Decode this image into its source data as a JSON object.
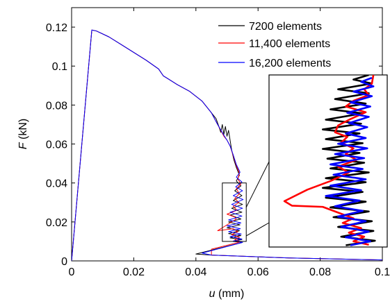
{
  "chart_data": {
    "type": "line",
    "xlabel": {
      "symbol": "u",
      "unit": "(mm)"
    },
    "ylabel": {
      "symbol": "F",
      "unit": "(kN)"
    },
    "xlim": [
      0,
      0.1
    ],
    "ylim": [
      0,
      0.13
    ],
    "x_ticks": [
      {
        "value": 0,
        "label": "0"
      },
      {
        "value": 0.02,
        "label": "0.02"
      },
      {
        "value": 0.04,
        "label": "0.04"
      },
      {
        "value": 0.06,
        "label": "0.06"
      },
      {
        "value": 0.08,
        "label": "0.08"
      },
      {
        "value": 0.1,
        "label": "0.1"
      }
    ],
    "y_ticks": [
      {
        "value": 0,
        "label": "0"
      },
      {
        "value": 0.02,
        "label": "0.02"
      },
      {
        "value": 0.04,
        "label": "0.04"
      },
      {
        "value": 0.06,
        "label": "0.06"
      },
      {
        "value": 0.08,
        "label": "0.08"
      },
      {
        "value": 0.1,
        "label": "0.1"
      },
      {
        "value": 0.12,
        "label": "0.12"
      }
    ],
    "grid": false,
    "legend_position": "top-right",
    "series": [
      {
        "name": "7200 elements",
        "color": "#000000",
        "points": [
          [
            0,
            0
          ],
          [
            0.0065,
            0.1185
          ],
          [
            0.008,
            0.118
          ],
          [
            0.012,
            0.115
          ],
          [
            0.016,
            0.111
          ],
          [
            0.02,
            0.107
          ],
          [
            0.024,
            0.103
          ],
          [
            0.028,
            0.0985
          ],
          [
            0.0295,
            0.095
          ],
          [
            0.031,
            0.0935
          ],
          [
            0.034,
            0.0905
          ],
          [
            0.038,
            0.087
          ],
          [
            0.042,
            0.082
          ],
          [
            0.045,
            0.076
          ],
          [
            0.0465,
            0.073
          ],
          [
            0.0475,
            0.0685
          ],
          [
            0.048,
            0.066
          ],
          [
            0.0485,
            0.07
          ],
          [
            0.049,
            0.065
          ],
          [
            0.0495,
            0.069
          ],
          [
            0.05,
            0.064
          ],
          [
            0.0505,
            0.067
          ],
          [
            0.051,
            0.062
          ],
          [
            0.0515,
            0.057
          ],
          [
            0.0522,
            0.052
          ],
          [
            0.053,
            0.048
          ],
          [
            0.054,
            0.044
          ],
          [
            0.053,
            0.041
          ],
          [
            0.0545,
            0.0385
          ],
          [
            0.0525,
            0.036
          ],
          [
            0.0548,
            0.0335
          ],
          [
            0.052,
            0.031
          ],
          [
            0.055,
            0.029
          ],
          [
            0.0515,
            0.027
          ],
          [
            0.0548,
            0.025
          ],
          [
            0.051,
            0.0235
          ],
          [
            0.0545,
            0.0215
          ],
          [
            0.0505,
            0.02
          ],
          [
            0.0542,
            0.0185
          ],
          [
            0.05,
            0.017
          ],
          [
            0.054,
            0.0155
          ],
          [
            0.0505,
            0.014
          ],
          [
            0.0545,
            0.013
          ],
          [
            0.051,
            0.0118
          ],
          [
            0.0548,
            0.011
          ],
          [
            0.052,
            0.01
          ],
          [
            0.055,
            0.0095
          ],
          [
            0.04,
            0.0035
          ],
          [
            0.045,
            0.003
          ],
          [
            0.07,
            0.0015
          ],
          [
            0.1,
            0.0005
          ]
        ]
      },
      {
        "name": "11,400 elements",
        "color": "#ff0000",
        "points": [
          [
            0,
            0
          ],
          [
            0.0065,
            0.1185
          ],
          [
            0.008,
            0.118
          ],
          [
            0.012,
            0.115
          ],
          [
            0.016,
            0.111
          ],
          [
            0.02,
            0.107
          ],
          [
            0.024,
            0.103
          ],
          [
            0.028,
            0.0985
          ],
          [
            0.0295,
            0.095
          ],
          [
            0.031,
            0.0935
          ],
          [
            0.034,
            0.0905
          ],
          [
            0.038,
            0.087
          ],
          [
            0.042,
            0.082
          ],
          [
            0.045,
            0.076
          ],
          [
            0.047,
            0.07
          ],
          [
            0.049,
            0.064
          ],
          [
            0.05,
            0.062
          ],
          [
            0.051,
            0.059
          ],
          [
            0.052,
            0.054
          ],
          [
            0.053,
            0.049
          ],
          [
            0.054,
            0.045
          ],
          [
            0.0535,
            0.042
          ],
          [
            0.0545,
            0.0395
          ],
          [
            0.053,
            0.037
          ],
          [
            0.054,
            0.0345
          ],
          [
            0.0525,
            0.032
          ],
          [
            0.0538,
            0.03
          ],
          [
            0.052,
            0.028
          ],
          [
            0.0532,
            0.026
          ],
          [
            0.05,
            0.024
          ],
          [
            0.0525,
            0.0225
          ],
          [
            0.053,
            0.0215
          ],
          [
            0.049,
            0.0175
          ],
          [
            0.047,
            0.0155
          ],
          [
            0.052,
            0.0165
          ],
          [
            0.0535,
            0.015
          ],
          [
            0.0515,
            0.0135
          ],
          [
            0.054,
            0.012
          ],
          [
            0.0525,
            0.0108
          ],
          [
            0.0545,
            0.0098
          ],
          [
            0.045,
            0.006
          ],
          [
            0.045,
            0.003
          ],
          [
            0.07,
            0.0015
          ],
          [
            0.1,
            0.0005
          ]
        ]
      },
      {
        "name": "16,200 elements",
        "color": "#0000ff",
        "points": [
          [
            0,
            0
          ],
          [
            0.0065,
            0.1185
          ],
          [
            0.008,
            0.118
          ],
          [
            0.012,
            0.115
          ],
          [
            0.016,
            0.111
          ],
          [
            0.02,
            0.107
          ],
          [
            0.024,
            0.103
          ],
          [
            0.028,
            0.0985
          ],
          [
            0.0295,
            0.095
          ],
          [
            0.031,
            0.0935
          ],
          [
            0.034,
            0.0905
          ],
          [
            0.038,
            0.087
          ],
          [
            0.042,
            0.082
          ],
          [
            0.045,
            0.076
          ],
          [
            0.047,
            0.07
          ],
          [
            0.049,
            0.0645
          ],
          [
            0.05,
            0.062
          ],
          [
            0.051,
            0.059
          ],
          [
            0.052,
            0.0545
          ],
          [
            0.053,
            0.0495
          ],
          [
            0.0542,
            0.0455
          ],
          [
            0.053,
            0.043
          ],
          [
            0.0548,
            0.0405
          ],
          [
            0.0528,
            0.038
          ],
          [
            0.055,
            0.036
          ],
          [
            0.052,
            0.0335
          ],
          [
            0.0552,
            0.0315
          ],
          [
            0.0515,
            0.029
          ],
          [
            0.055,
            0.027
          ],
          [
            0.051,
            0.025
          ],
          [
            0.0548,
            0.023
          ],
          [
            0.0505,
            0.021
          ],
          [
            0.0545,
            0.0195
          ],
          [
            0.05,
            0.018
          ],
          [
            0.0543,
            0.0165
          ],
          [
            0.0505,
            0.015
          ],
          [
            0.0546,
            0.0138
          ],
          [
            0.051,
            0.0125
          ],
          [
            0.0548,
            0.0112
          ],
          [
            0.052,
            0.0102
          ],
          [
            0.055,
            0.0095
          ],
          [
            0.042,
            0.004
          ],
          [
            0.045,
            0.003
          ],
          [
            0.07,
            0.0015
          ],
          [
            0.1,
            0.0005
          ]
        ]
      }
    ],
    "inset": {
      "source_xlim": [
        0.0485,
        0.0562
      ],
      "source_ylim": [
        0.01,
        0.04
      ],
      "series": [
        {
          "color": "#000000",
          "points": [
            [
              0.055,
              0.04
            ],
            [
              0.054,
              0.0392
            ],
            [
              0.0552,
              0.0385
            ],
            [
              0.053,
              0.0375
            ],
            [
              0.055,
              0.0368
            ],
            [
              0.0528,
              0.0358
            ],
            [
              0.0548,
              0.035
            ],
            [
              0.0525,
              0.034
            ],
            [
              0.0546,
              0.0333
            ],
            [
              0.0522,
              0.0322
            ],
            [
              0.0545,
              0.0315
            ],
            [
              0.052,
              0.0305
            ],
            [
              0.0544,
              0.0298
            ],
            [
              0.0522,
              0.0288
            ],
            [
              0.0546,
              0.0281
            ],
            [
              0.052,
              0.0271
            ],
            [
              0.0544,
              0.0264
            ],
            [
              0.0523,
              0.0254
            ],
            [
              0.0547,
              0.0247
            ],
            [
              0.0525,
              0.0237
            ],
            [
              0.055,
              0.023
            ],
            [
              0.0522,
              0.022
            ],
            [
              0.0548,
              0.0213
            ],
            [
              0.052,
              0.0203
            ],
            [
              0.0546,
              0.0196
            ],
            [
              0.0522,
              0.0186
            ],
            [
              0.0548,
              0.0179
            ],
            [
              0.0525,
              0.0169
            ],
            [
              0.055,
              0.0162
            ],
            [
              0.0527,
              0.0152
            ],
            [
              0.0552,
              0.0145
            ],
            [
              0.053,
              0.0135
            ],
            [
              0.0553,
              0.0128
            ],
            [
              0.0532,
              0.0118
            ],
            [
              0.0554,
              0.0111
            ],
            [
              0.0535,
              0.0103
            ]
          ]
        },
        {
          "color": "#ff0000",
          "points": [
            [
              0.0553,
              0.04
            ],
            [
              0.0552,
              0.0385
            ],
            [
              0.0547,
              0.0375
            ],
            [
              0.055,
              0.0365
            ],
            [
              0.054,
              0.0355
            ],
            [
              0.0535,
              0.0345
            ],
            [
              0.0548,
              0.0335
            ],
            [
              0.0538,
              0.0323
            ],
            [
              0.053,
              0.0312
            ],
            [
              0.0528,
              0.03
            ],
            [
              0.0536,
              0.0292
            ],
            [
              0.0532,
              0.0282
            ],
            [
              0.054,
              0.0272
            ],
            [
              0.0535,
              0.0262
            ],
            [
              0.0542,
              0.0252
            ],
            [
              0.053,
              0.024
            ],
            [
              0.0537,
              0.023
            ],
            [
              0.0525,
              0.0215
            ],
            [
              0.051,
              0.02
            ],
            [
              0.0495,
              0.018
            ],
            [
              0.05,
              0.0172
            ],
            [
              0.052,
              0.017
            ],
            [
              0.053,
              0.016
            ],
            [
              0.054,
              0.015
            ],
            [
              0.0533,
              0.0142
            ],
            [
              0.0545,
              0.0133
            ],
            [
              0.0537,
              0.0125
            ],
            [
              0.0547,
              0.0118
            ],
            [
              0.054,
              0.011
            ],
            [
              0.055,
              0.0104
            ]
          ]
        },
        {
          "color": "#0000ff",
          "points": [
            [
              0.0552,
              0.0395
            ],
            [
              0.0545,
              0.0388
            ],
            [
              0.0553,
              0.038
            ],
            [
              0.054,
              0.0371
            ],
            [
              0.0552,
              0.0363
            ],
            [
              0.0538,
              0.0352
            ],
            [
              0.0551,
              0.0345
            ],
            [
              0.0536,
              0.0334
            ],
            [
              0.055,
              0.0327
            ],
            [
              0.0537,
              0.0316
            ],
            [
              0.0549,
              0.0309
            ],
            [
              0.0535,
              0.0298
            ],
            [
              0.0548,
              0.029
            ],
            [
              0.053,
              0.028
            ],
            [
              0.0549,
              0.0272
            ],
            [
              0.0528,
              0.0262
            ],
            [
              0.0547,
              0.0255
            ],
            [
              0.0525,
              0.0244
            ],
            [
              0.0546,
              0.0236
            ],
            [
              0.0527,
              0.0226
            ],
            [
              0.0548,
              0.0218
            ],
            [
              0.0525,
              0.0207
            ],
            [
              0.0545,
              0.0199
            ],
            [
              0.0522,
              0.0189
            ],
            [
              0.0544,
              0.0181
            ],
            [
              0.0528,
              0.0171
            ],
            [
              0.0546,
              0.0163
            ],
            [
              0.053,
              0.0153
            ],
            [
              0.0548,
              0.0145
            ],
            [
              0.0532,
              0.0135
            ],
            [
              0.055,
              0.0127
            ],
            [
              0.0535,
              0.0117
            ],
            [
              0.0551,
              0.011
            ],
            [
              0.0538,
              0.0103
            ]
          ]
        }
      ]
    }
  }
}
